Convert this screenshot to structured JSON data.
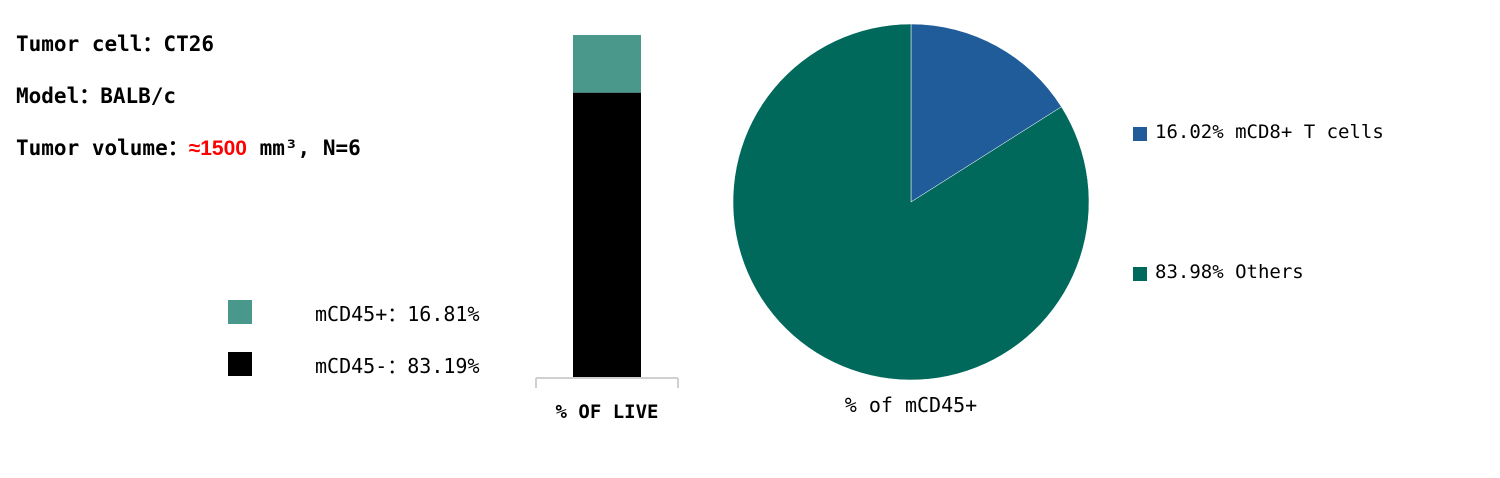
{
  "info": {
    "tumor_cell": "Tumor cell：CT26",
    "model": "Model：BALB/c",
    "volume_prefix": "Tumor volume：",
    "volume_value": "≈1500",
    "volume_suffix": " mm³, N=6",
    "highlight_color": "#ff0000"
  },
  "chart_data": [
    {
      "type": "bar",
      "stacked": true,
      "categories": [
        "% OF LIVE"
      ],
      "series": [
        {
          "name": "mCD45-",
          "values": [
            83.19
          ],
          "color": "#000000",
          "label": "mCD45-：83.19%"
        },
        {
          "name": "mCD45+",
          "values": [
            16.81
          ],
          "color": "#4a978b",
          "label": "mCD45+：16.81%"
        }
      ],
      "ylim": [
        0,
        100
      ],
      "legend": "left",
      "xlabel": "% OF LIVE"
    },
    {
      "type": "pie",
      "title": "% of mCD45+",
      "slices": [
        {
          "name": "mCD8+ T cells",
          "value": 16.02,
          "color": "#1f5c99",
          "label": "16.02% mCD8+ T cells"
        },
        {
          "name": "Others",
          "value": 83.98,
          "color": "#00695b",
          "label": "83.98% Others"
        }
      ],
      "legend": "right"
    }
  ]
}
